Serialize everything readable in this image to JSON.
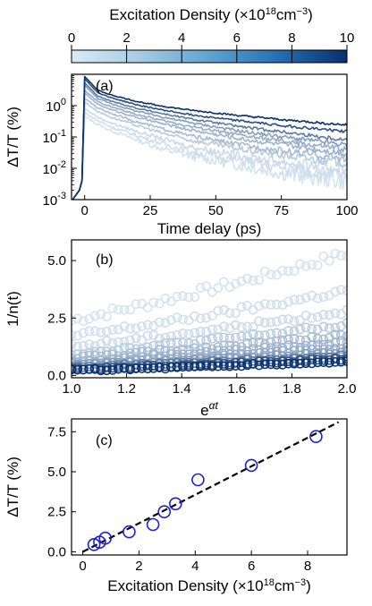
{
  "colorbar": {
    "title": "Excitation Density (×10",
    "title_exp": "18",
    "title_unit": "cm",
    "title_unit_exp": "−3",
    "title_close": ")",
    "min": 0,
    "max": 10,
    "ticks": [
      "0",
      "2",
      "4",
      "6",
      "8",
      "10"
    ],
    "color_low": "#dbe9f6",
    "color_high": "#08306b"
  },
  "chart_data": [
    {
      "panel": "(a)",
      "type": "line",
      "xlabel": "Time delay (ps)",
      "ylabel": "ΔT/T (%)",
      "xlim": [
        -5,
        100
      ],
      "ylim": [
        0.001,
        10
      ],
      "yscale": "log",
      "xticks": [
        "0",
        "25",
        "50",
        "75",
        "100"
      ],
      "yticks": [
        {
          "base": "10",
          "exp": "0"
        },
        {
          "base": "10",
          "exp": "-1"
        },
        {
          "base": "10",
          "exp": "-2"
        },
        {
          "base": "10",
          "exp": "-3"
        }
      ],
      "series": [
        {
          "density": 0.4,
          "values_at": [
            [
              0,
              0.45
            ],
            [
              5,
              0.25
            ],
            [
              10,
              0.16
            ],
            [
              20,
              0.08
            ],
            [
              30,
              0.04
            ],
            [
              40,
              0.025
            ],
            [
              60,
              0.012
            ],
            [
              80,
              0.006
            ],
            [
              100,
              0.004
            ]
          ]
        },
        {
          "density": 0.6,
          "values_at": [
            [
              0,
              0.6
            ],
            [
              5,
              0.33
            ],
            [
              10,
              0.21
            ],
            [
              20,
              0.11
            ],
            [
              30,
              0.06
            ],
            [
              40,
              0.035
            ],
            [
              60,
              0.017
            ],
            [
              80,
              0.009
            ],
            [
              100,
              0.006
            ]
          ]
        },
        {
          "density": 0.8,
          "values_at": [
            [
              0,
              0.8
            ],
            [
              5,
              0.43
            ],
            [
              10,
              0.28
            ],
            [
              20,
              0.15
            ],
            [
              30,
              0.085
            ],
            [
              40,
              0.05
            ],
            [
              60,
              0.025
            ],
            [
              80,
              0.014
            ],
            [
              100,
              0.009
            ]
          ]
        },
        {
          "density": 1.7,
          "values_at": [
            [
              0,
              1.3
            ],
            [
              5,
              0.65
            ],
            [
              10,
              0.43
            ],
            [
              20,
              0.23
            ],
            [
              30,
              0.13
            ],
            [
              40,
              0.08
            ],
            [
              60,
              0.04
            ],
            [
              80,
              0.023
            ],
            [
              100,
              0.015
            ]
          ]
        },
        {
          "density": 2.5,
          "values_at": [
            [
              0,
              1.7
            ],
            [
              5,
              0.85
            ],
            [
              10,
              0.57
            ],
            [
              20,
              0.3
            ],
            [
              30,
              0.18
            ],
            [
              40,
              0.11
            ],
            [
              60,
              0.055
            ],
            [
              80,
              0.032
            ],
            [
              100,
              0.02
            ]
          ]
        },
        {
          "density": 2.9,
          "values_at": [
            [
              0,
              2.5
            ],
            [
              5,
              1.1
            ],
            [
              10,
              0.75
            ],
            [
              20,
              0.42
            ],
            [
              30,
              0.26
            ],
            [
              40,
              0.17
            ],
            [
              60,
              0.085
            ],
            [
              80,
              0.05
            ],
            [
              100,
              0.03
            ]
          ]
        },
        {
          "density": 3.3,
          "values_at": [
            [
              0,
              3.0
            ],
            [
              5,
              1.35
            ],
            [
              10,
              0.92
            ],
            [
              20,
              0.52
            ],
            [
              30,
              0.33
            ],
            [
              40,
              0.22
            ],
            [
              60,
              0.11
            ],
            [
              80,
              0.065
            ],
            [
              100,
              0.04
            ]
          ]
        },
        {
          "density": 4.1,
          "values_at": [
            [
              0,
              4.5
            ],
            [
              5,
              1.7
            ],
            [
              10,
              1.15
            ],
            [
              20,
              0.66
            ],
            [
              30,
              0.43
            ],
            [
              40,
              0.29
            ],
            [
              60,
              0.15
            ],
            [
              80,
              0.09
            ],
            [
              100,
              0.055
            ]
          ]
        },
        {
          "density": 6.0,
          "values_at": [
            [
              0,
              5.4
            ],
            [
              5,
              2.0
            ],
            [
              10,
              1.4
            ],
            [
              20,
              0.82
            ],
            [
              30,
              0.55
            ],
            [
              40,
              0.38
            ],
            [
              60,
              0.21
            ],
            [
              80,
              0.13
            ],
            [
              100,
              0.08
            ]
          ]
        },
        {
          "density": 8.3,
          "values_at": [
            [
              0,
              7.2
            ],
            [
              5,
              2.6
            ],
            [
              10,
              1.8
            ],
            [
              20,
              1.05
            ],
            [
              30,
              0.72
            ],
            [
              40,
              0.52
            ],
            [
              60,
              0.32
            ],
            [
              80,
              0.21
            ],
            [
              100,
              0.15
            ]
          ]
        },
        {
          "density": 10.0,
          "values_at": [
            [
              0,
              8.5
            ],
            [
              5,
              3.1
            ],
            [
              10,
              2.2
            ],
            [
              20,
              1.35
            ],
            [
              30,
              0.95
            ],
            [
              40,
              0.72
            ],
            [
              60,
              0.47
            ],
            [
              80,
              0.33
            ],
            [
              100,
              0.24
            ]
          ]
        }
      ]
    },
    {
      "panel": "(b)",
      "type": "scatter",
      "xlabel": "e",
      "xlabel_exp": "αt",
      "ylabel": "1/n(t)",
      "xlim": [
        1.0,
        2.0
      ],
      "ylim": [
        -0.1,
        5.9
      ],
      "xticks": [
        "1.0",
        "1.2",
        "1.4",
        "1.6",
        "1.8",
        "2.0"
      ],
      "yticks": [
        "0.0",
        "2.5",
        "5.0"
      ],
      "series": [
        {
          "density": 0.4,
          "y_start": 2.4,
          "y_end": 5.3
        },
        {
          "density": 0.6,
          "y_start": 1.7,
          "y_end": 3.7
        },
        {
          "density": 0.8,
          "y_start": 1.25,
          "y_end": 2.8
        },
        {
          "density": 1.7,
          "y_start": 0.95,
          "y_end": 2.2
        },
        {
          "density": 2.5,
          "y_start": 0.75,
          "y_end": 1.75
        },
        {
          "density": 2.9,
          "y_start": 0.6,
          "y_end": 1.45
        },
        {
          "density": 3.3,
          "y_start": 0.5,
          "y_end": 1.2
        },
        {
          "density": 4.1,
          "y_start": 0.42,
          "y_end": 1.0
        },
        {
          "density": 6.0,
          "y_start": 0.35,
          "y_end": 0.85
        },
        {
          "density": 8.3,
          "y_start": 0.28,
          "y_end": 0.72
        },
        {
          "density": 10.0,
          "y_start": 0.22,
          "y_end": 0.6
        }
      ]
    },
    {
      "panel": "(c)",
      "type": "scatter",
      "xlabel": "Excitation Density (×10",
      "xlabel_exp": "18",
      "xlabel_unit": "cm",
      "xlabel_unit_exp": "−3",
      "xlabel_close": ")",
      "ylabel": "ΔT/T (%)",
      "xlim": [
        -0.4,
        9.4
      ],
      "ylim": [
        -0.2,
        8.3
      ],
      "xticks": [
        "0",
        "2",
        "4",
        "6",
        "8"
      ],
      "yticks": [
        "0.0",
        "2.5",
        "5.0",
        "7.5"
      ],
      "points": [
        {
          "x": 0.4,
          "y": 0.45
        },
        {
          "x": 0.6,
          "y": 0.6
        },
        {
          "x": 0.8,
          "y": 0.85
        },
        {
          "x": 1.65,
          "y": 1.25
        },
        {
          "x": 2.5,
          "y": 1.7
        },
        {
          "x": 2.9,
          "y": 2.5
        },
        {
          "x": 3.3,
          "y": 3.0
        },
        {
          "x": 4.1,
          "y": 4.5
        },
        {
          "x": 6.0,
          "y": 5.4
        },
        {
          "x": 8.3,
          "y": 7.2
        }
      ],
      "fit_line": {
        "style": "dashed",
        "x": [
          0.0,
          9.1
        ],
        "y": [
          0.0,
          8.1
        ]
      },
      "marker_color": "#1f1fd6"
    }
  ]
}
